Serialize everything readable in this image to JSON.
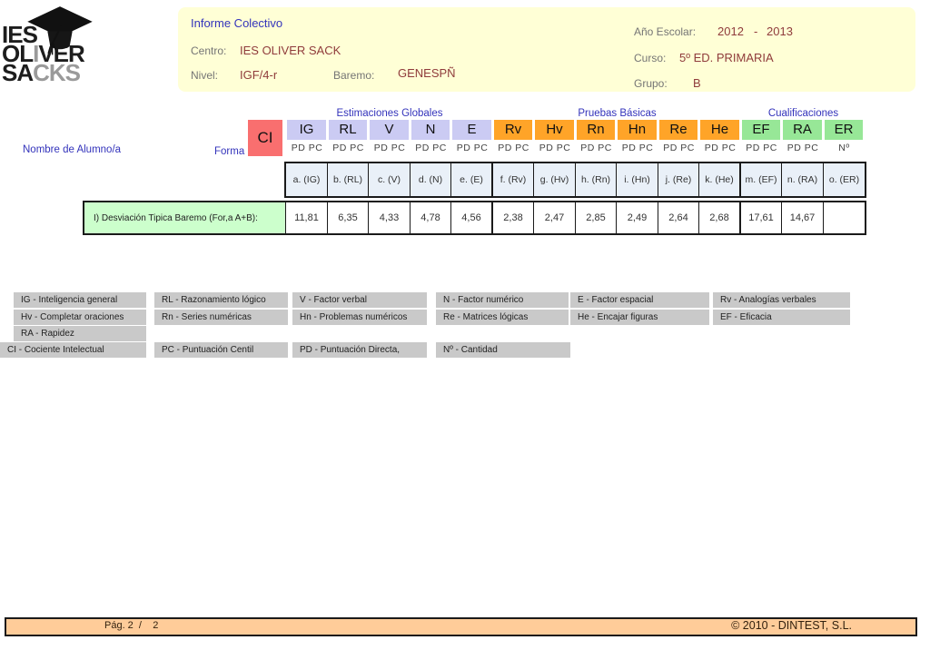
{
  "logo": {
    "line1": "IES",
    "line2_parts": [
      "OL",
      "I",
      "VER"
    ],
    "line3_parts": [
      "SA",
      "CKS"
    ]
  },
  "header": {
    "title": "Informe Colectivo",
    "centro_label": "Centro:",
    "centro_value": "IES OLIVER SACK",
    "nivel_label": "Nivel:",
    "nivel_value": "IGF/4-r",
    "baremo_label": "Baremo:",
    "baremo_value": "GENESPÑ",
    "anio_label": "Año Escolar:",
    "anio_from": "2012",
    "anio_sep": "-",
    "anio_to": "2013",
    "curso_label": "Curso:",
    "curso_value": "5º ED. PRIMARIA",
    "grupo_label": "Grupo:",
    "grupo_value": "B"
  },
  "table": {
    "name_header": "Nombre de Alumno/a",
    "forma_label": "Forma",
    "ci_label": "CI",
    "groups": [
      {
        "label": "Estimaciones Globales"
      },
      {
        "label": "Pruebas Básicas"
      },
      {
        "label": "Cualificaciones"
      }
    ],
    "columns": [
      {
        "code": "IG",
        "group": "global",
        "sub": "PD PC",
        "header": "a. (IG)",
        "value": "11,81"
      },
      {
        "code": "RL",
        "group": "global",
        "sub": "PD PC",
        "header": "b. (RL)",
        "value": "6,35"
      },
      {
        "code": "V",
        "group": "global",
        "sub": "PD PC",
        "header": "c. (V)",
        "value": "4,33"
      },
      {
        "code": "N",
        "group": "global",
        "sub": "PD PC",
        "header": "d. (N)",
        "value": "4,78"
      },
      {
        "code": "E",
        "group": "global",
        "sub": "PD PC",
        "header": "e. (E)",
        "value": "4,56"
      },
      {
        "code": "Rv",
        "group": "basic",
        "sub": "PD PC",
        "header": "f. (Rv)",
        "value": "2,38"
      },
      {
        "code": "Hv",
        "group": "basic",
        "sub": "PD PC",
        "header": "g. (Hv)",
        "value": "2,47"
      },
      {
        "code": "Rn",
        "group": "basic",
        "sub": "PD PC",
        "header": "h. (Rn)",
        "value": "2,85"
      },
      {
        "code": "Hn",
        "group": "basic",
        "sub": "PD PC",
        "header": "i. (Hn)",
        "value": "2,49"
      },
      {
        "code": "Re",
        "group": "basic",
        "sub": "PD PC",
        "header": "j. (Re)",
        "value": "2,64"
      },
      {
        "code": "He",
        "group": "basic",
        "sub": "PD PC",
        "header": "k. (He)",
        "value": "2,68"
      },
      {
        "code": "EF",
        "group": "quali",
        "sub": "PD PC",
        "header": "m. (EF)",
        "value": "17,61"
      },
      {
        "code": "RA",
        "group": "quali",
        "sub": "PD PC",
        "header": "n. (RA)",
        "value": "14,67"
      },
      {
        "code": "ER",
        "group": "quali",
        "sub": "Nº",
        "header": "o. (ER)",
        "value": ""
      }
    ],
    "row_label": "I) Desviación Tipica Baremo (For,a A+B):"
  },
  "legend": {
    "rows": [
      [
        "IG - Inteligencia general",
        "RL - Razonamiento lógico",
        "V - Factor verbal",
        "N - Factor numérico",
        "E - Factor espacial",
        "Rv - Analogías verbales"
      ],
      [
        "Hv - Completar oraciones",
        "Rn - Series numéricas",
        "Hn - Problemas numéricos",
        "Re - Matrices lógicas",
        "He - Encajar figuras",
        "EF - Eficacia"
      ],
      [
        "RA - Rapidez"
      ],
      [
        "CI - Cociente Intelectual",
        "PC - Puntuación Centil",
        "PD - Puntuación Directa,",
        "Nº - Cantidad"
      ]
    ]
  },
  "footer": {
    "page": "Pág. 2  /    2",
    "copyright": "© 2010 - DINTEST, S.L."
  },
  "colors": {
    "ci_red": "#F96F6F",
    "globals_lavender": "#CBCBF3",
    "basics_orange": "#FFA428",
    "quali_green": "#97E797",
    "row_label_green": "#CCFFCC",
    "subheader_blue": "#E9F0F8",
    "header_yellow": "#FFFFD6",
    "footer_peach": "#FFCC99",
    "legend_gray": "#C9C9C9",
    "accent_blue": "#3333BB",
    "value_maroon": "#8F3B3B"
  }
}
